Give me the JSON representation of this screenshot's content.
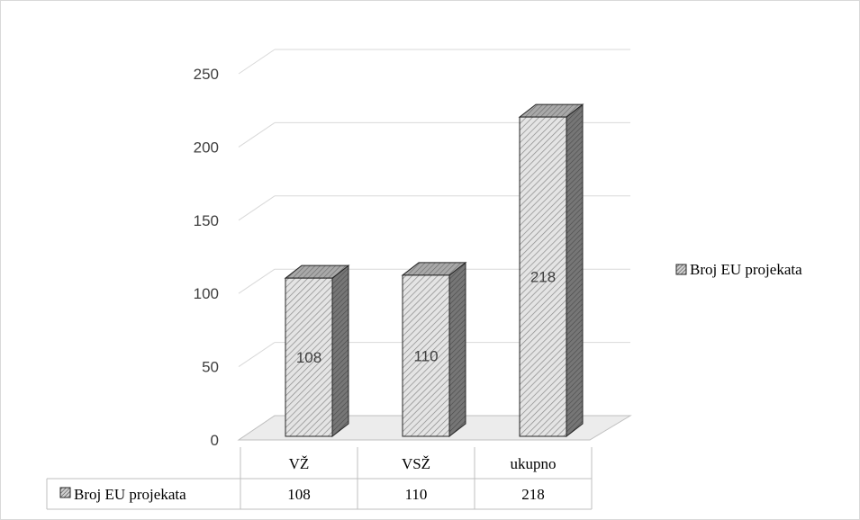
{
  "chart_data": {
    "type": "bar",
    "style": "3d-column-with-data-table",
    "categories": [
      "VŽ",
      "VSŽ",
      "ukupno"
    ],
    "series": [
      {
        "name": "Broj EU projekata",
        "values": [
          108,
          110,
          218
        ]
      }
    ],
    "ylim": [
      0,
      250
    ],
    "yticks": [
      0,
      50,
      100,
      150,
      200,
      250
    ],
    "grid": true,
    "legend": "right",
    "data_labels": true,
    "data_table": true,
    "colors": {
      "bar_front": "#e4e4e4",
      "bar_hatch": "#8a8a8a",
      "bar_side": "#6f6f6f",
      "bar_top": "#a9a9a9",
      "outline": "#262626",
      "grid": "#d9d9d9",
      "floor": "#ececec"
    }
  }
}
